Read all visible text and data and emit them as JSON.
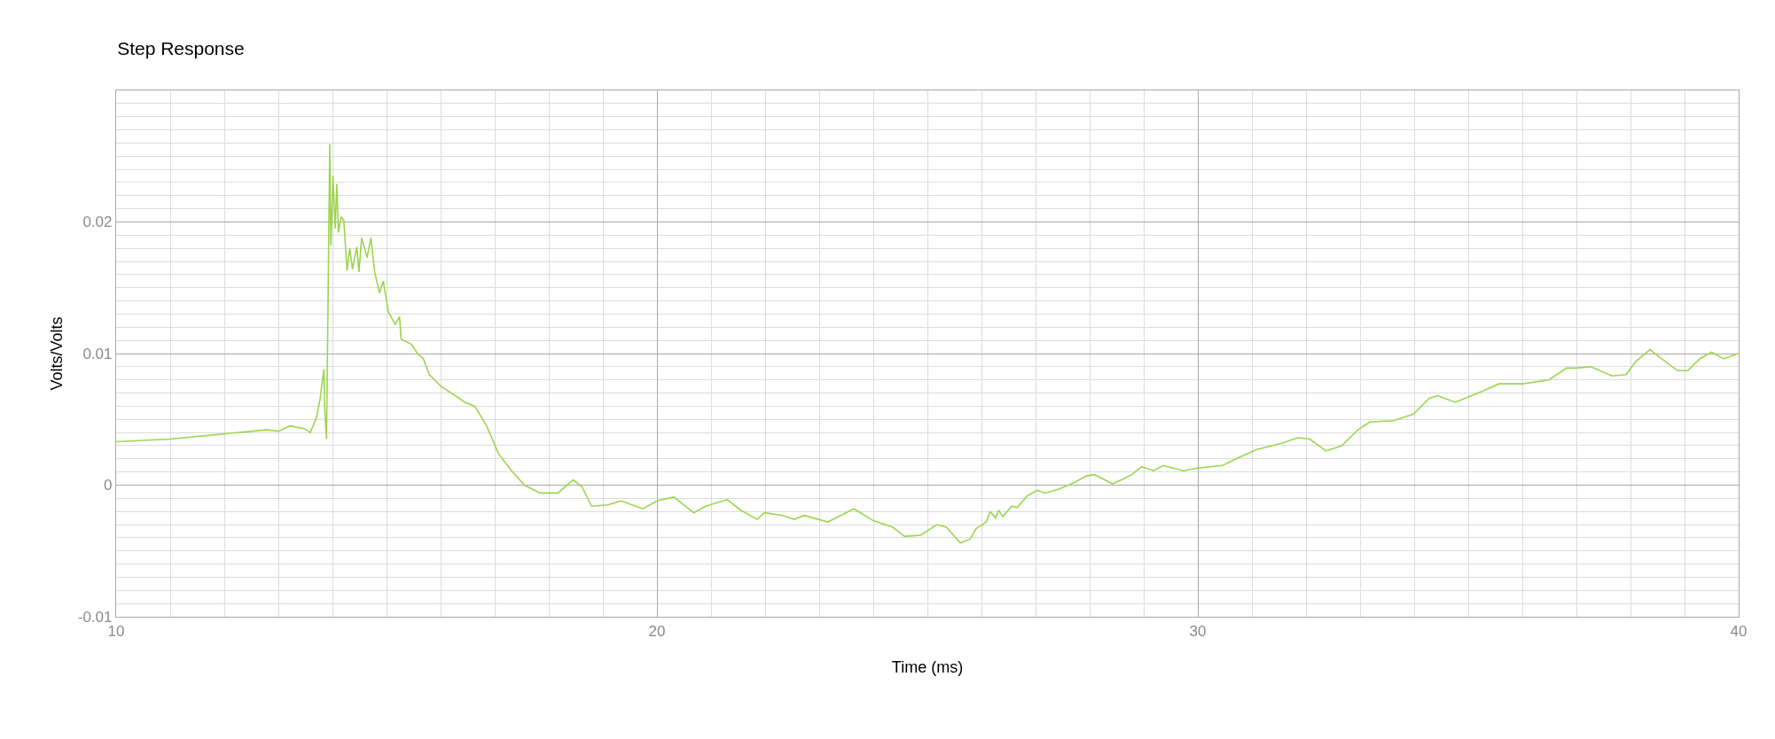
{
  "chart_data": {
    "type": "line",
    "title": "Step Response",
    "xlabel": "Time (ms)",
    "ylabel": "Volts/Volts",
    "x": [
      10,
      11,
      12,
      12.78,
      13,
      13.21,
      13.48,
      13.59,
      13.7,
      13.77,
      13.84,
      13.86,
      13.89,
      13.95,
      13.97,
      14.01,
      14.05,
      14.08,
      14.11,
      14.16,
      14.21,
      14.27,
      14.32,
      14.37,
      14.45,
      14.49,
      14.54,
      14.64,
      14.71,
      14.78,
      14.87,
      14.94,
      15.03,
      15.16,
      15.24,
      15.27,
      15.46,
      15.57,
      15.68,
      15.79,
      16.01,
      16.27,
      16.45,
      16.63,
      16.85,
      17.07,
      17.29,
      17.55,
      17.84,
      18.17,
      18.45,
      18.61,
      18.79,
      19.09,
      19.34,
      19.74,
      20,
      20.31,
      20.68,
      20.9,
      21.3,
      21.55,
      21.85,
      21.99,
      22.32,
      22.54,
      22.72,
      23.16,
      23.64,
      24,
      24.36,
      24.58,
      24.88,
      25.17,
      25.35,
      25.61,
      25.79,
      25.9,
      26.09,
      26.16,
      26.26,
      26.32,
      26.39,
      26.56,
      26.66,
      26.85,
      27.03,
      27.18,
      27.43,
      27.72,
      27.94,
      28.09,
      28.42,
      28.64,
      28.78,
      28.96,
      29.18,
      29.36,
      29.73,
      30,
      30.46,
      30.71,
      31.08,
      31.56,
      31.85,
      32.07,
      32.37,
      32.66,
      32.96,
      33.18,
      33.62,
      33.99,
      34.28,
      34.43,
      34.76,
      34.94,
      35.24,
      35.57,
      36.01,
      36.49,
      36.82,
      37,
      37.26,
      37.66,
      37.92,
      38.1,
      38.36,
      38.51,
      38.87,
      39.06,
      39.28,
      39.5,
      39.72,
      40
    ],
    "series": [
      {
        "color": "#9dd54f",
        "values": [
          0.0033,
          0.0035,
          0.0039,
          0.0042,
          0.0041,
          0.0045,
          0.0043,
          0.004,
          0.0051,
          0.0065,
          0.0088,
          0.0055,
          0.0035,
          0.0259,
          0.0182,
          0.0235,
          0.0195,
          0.0229,
          0.0192,
          0.0204,
          0.0201,
          0.0163,
          0.018,
          0.0164,
          0.0181,
          0.0162,
          0.0188,
          0.0173,
          0.0188,
          0.0162,
          0.0146,
          0.0155,
          0.0132,
          0.0122,
          0.0128,
          0.0111,
          0.0107,
          0.01,
          0.0096,
          0.0084,
          0.0075,
          0.0068,
          0.0063,
          0.006,
          0.0045,
          0.0024,
          0.0012,
          0.0,
          -0.0006,
          -0.0006,
          0.0004,
          -0.0001,
          -0.0016,
          -0.0015,
          -0.0012,
          -0.0018,
          -0.0012,
          -0.0009,
          -0.0021,
          -0.0016,
          -0.0011,
          -0.0019,
          -0.0026,
          -0.0021,
          -0.0023,
          -0.0026,
          -0.0023,
          -0.0028,
          -0.0018,
          -0.0027,
          -0.0032,
          -0.0039,
          -0.0038,
          -0.003,
          -0.0032,
          -0.0044,
          -0.0041,
          -0.0033,
          -0.0028,
          -0.002,
          -0.0025,
          -0.0019,
          -0.0024,
          -0.0016,
          -0.0017,
          -0.0008,
          -0.0004,
          -0.0006,
          -0.0003,
          0.0002,
          0.0007,
          0.0008,
          0.0001,
          0.0005,
          0.0008,
          0.0014,
          0.0011,
          0.0015,
          0.0011,
          0.0013,
          0.0015,
          0.002,
          0.0027,
          0.0032,
          0.0036,
          0.0035,
          0.0026,
          0.003,
          0.0042,
          0.0048,
          0.0049,
          0.0054,
          0.0066,
          0.0068,
          0.0063,
          0.0066,
          0.0071,
          0.0077,
          0.0077,
          0.008,
          0.0089,
          0.0089,
          0.009,
          0.0083,
          0.0084,
          0.0094,
          0.0103,
          0.0098,
          0.0087,
          0.0087,
          0.0096,
          0.0101,
          0.0096,
          0.01
        ]
      }
    ],
    "xlim": [
      10,
      40
    ],
    "xticks": [
      10,
      {
        "value": 11,
        "label": null
      },
      {
        "value": 12,
        "label": null
      },
      {
        "value": 13,
        "label": null
      },
      {
        "value": 14,
        "label": null
      },
      {
        "value": 15,
        "label": null
      },
      {
        "value": 16,
        "label": null
      },
      {
        "value": 17,
        "label": null
      },
      {
        "value": 18,
        "label": null
      },
      {
        "value": 19,
        "label": null
      },
      20,
      {
        "value": 21,
        "label": null
      },
      {
        "value": 22,
        "label": null
      },
      {
        "value": 23,
        "label": null
      },
      {
        "value": 24,
        "label": null
      },
      {
        "value": 25,
        "label": null
      },
      {
        "value": 26,
        "label": null
      },
      {
        "value": 27,
        "label": null
      },
      {
        "value": 28,
        "label": null
      },
      {
        "value": 29,
        "label": null
      },
      30,
      {
        "value": 31,
        "label": null
      },
      {
        "value": 32,
        "label": null
      },
      {
        "value": 33,
        "label": null
      },
      {
        "value": 34,
        "label": null
      },
      {
        "value": 35,
        "label": null
      },
      {
        "value": 36,
        "label": null
      },
      {
        "value": 37,
        "label": null
      },
      {
        "value": 38,
        "label": null
      },
      {
        "value": 39,
        "label": null
      },
      40
    ],
    "ylim": [
      -0.01,
      0.03
    ],
    "yticks": [
      -0.01,
      {
        "value": -0.009,
        "label": null
      },
      {
        "value": -0.008,
        "label": null
      },
      {
        "value": -0.007,
        "label": null
      },
      {
        "value": -0.006,
        "label": null
      },
      {
        "value": -0.005,
        "label": null
      },
      {
        "value": -0.004,
        "label": null
      },
      {
        "value": -0.003,
        "label": null
      },
      {
        "value": -0.002,
        "label": null
      },
      {
        "value": -0.001,
        "label": null
      },
      0,
      {
        "value": 0.001,
        "label": null
      },
      {
        "value": 0.002,
        "label": null
      },
      {
        "value": 0.003,
        "label": null
      },
      {
        "value": 0.004,
        "label": null
      },
      {
        "value": 0.005,
        "label": null
      },
      {
        "value": 0.006,
        "label": null
      },
      {
        "value": 0.007,
        "label": null
      },
      {
        "value": 0.008,
        "label": null
      },
      {
        "value": 0.009,
        "label": null
      },
      0.01,
      {
        "value": 0.011,
        "label": null
      },
      {
        "value": 0.012,
        "label": null
      },
      {
        "value": 0.013,
        "label": null
      },
      {
        "value": 0.014,
        "label": null
      },
      {
        "value": 0.015,
        "label": null
      },
      {
        "value": 0.016,
        "label": null
      },
      {
        "value": 0.017,
        "label": null
      },
      {
        "value": 0.018,
        "label": null
      },
      {
        "value": 0.019,
        "label": null
      },
      0.02,
      {
        "value": 0.021,
        "label": null
      },
      {
        "value": 0.022,
        "label": null
      },
      {
        "value": 0.023,
        "label": null
      },
      {
        "value": 0.024,
        "label": null
      },
      {
        "value": 0.025,
        "label": null
      },
      {
        "value": 0.026,
        "label": null
      },
      {
        "value": 0.027,
        "label": null
      },
      {
        "value": 0.028,
        "label": null
      },
      {
        "value": 0.029,
        "label": null
      }
    ],
    "grid": true
  }
}
